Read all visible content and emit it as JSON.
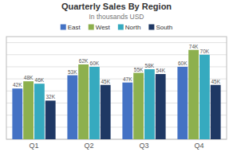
{
  "chart_data": {
    "type": "bar",
    "title": "Quarterly Sales By Region",
    "subtitle": "In thousands USD",
    "categories": [
      "Q1",
      "Q2",
      "Q3",
      "Q4"
    ],
    "series": [
      {
        "name": "East",
        "color": "#4472C4",
        "values": [
          42,
          53,
          47,
          60
        ],
        "value_labels": [
          "42K",
          "53K",
          "47K",
          "60K"
        ]
      },
      {
        "name": "West",
        "color": "#8DB04E",
        "values": [
          48,
          62,
          55,
          74
        ],
        "value_labels": [
          "48K",
          "62K",
          "55K",
          "74K"
        ]
      },
      {
        "name": "North",
        "color": "#36AABF",
        "values": [
          46,
          60,
          58,
          70
        ],
        "value_labels": [
          "46K",
          "60K",
          "58K",
          "70K"
        ]
      },
      {
        "name": "South",
        "color": "#1F3864",
        "values": [
          32,
          45,
          54,
          45
        ],
        "value_labels": [
          "32K",
          "45K",
          "54K",
          "45K"
        ]
      }
    ],
    "ylim": [
      0,
      85
    ],
    "yticks": [
      0,
      10,
      20,
      30,
      40,
      50,
      60,
      70,
      80
    ],
    "grid": true,
    "legend": "top",
    "data_labels": true,
    "tick_labels": "x"
  }
}
